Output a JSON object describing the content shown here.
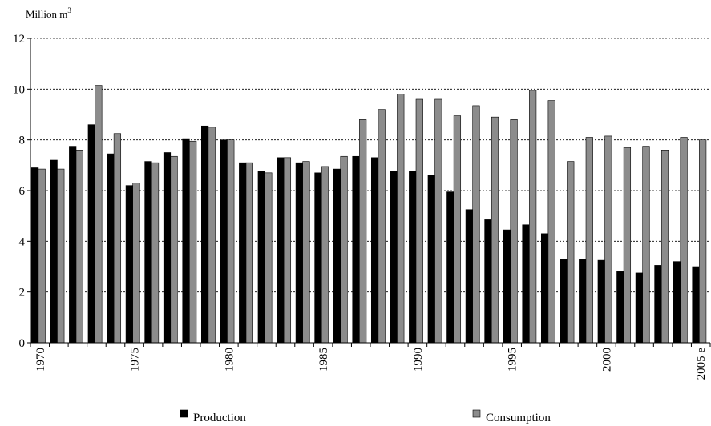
{
  "chart_data": {
    "type": "bar",
    "ylabel": "Million m",
    "ylabel_superscript": "3",
    "ylim": [
      0,
      12
    ],
    "yticks": [
      "0",
      "2",
      "4",
      "6",
      "8",
      "10",
      "12"
    ],
    "grid": true,
    "legend_position": "bottom",
    "categories": [
      "1970",
      "1971",
      "1972",
      "1973",
      "1974",
      "1975",
      "1976",
      "1977",
      "1978",
      "1979",
      "1980",
      "1981",
      "1982",
      "1983",
      "1984",
      "1985",
      "1986",
      "1987",
      "1988",
      "1989",
      "1990",
      "1991",
      "1992",
      "1993",
      "1994",
      "1995",
      "1996",
      "1997",
      "1998",
      "1999",
      "2000",
      "2001",
      "2002",
      "2003",
      "2004",
      "2005 e"
    ],
    "xtick_labels": [
      {
        "index": 0,
        "label": "1970"
      },
      {
        "index": 5,
        "label": "1975"
      },
      {
        "index": 10,
        "label": "1980"
      },
      {
        "index": 15,
        "label": "1985"
      },
      {
        "index": 20,
        "label": "1990"
      },
      {
        "index": 25,
        "label": "1995"
      },
      {
        "index": 30,
        "label": "2000"
      },
      {
        "index": 35,
        "label": "2005 e"
      }
    ],
    "series": [
      {
        "name": "Production",
        "color": "#000000",
        "values": [
          6.9,
          7.2,
          7.75,
          8.6,
          7.45,
          6.2,
          7.15,
          7.5,
          8.05,
          8.55,
          8.0,
          7.1,
          6.75,
          7.3,
          7.1,
          6.7,
          6.85,
          7.35,
          7.3,
          6.75,
          6.75,
          6.6,
          5.95,
          5.25,
          4.85,
          4.45,
          4.65,
          4.3,
          3.3,
          3.3,
          3.25,
          2.8,
          2.75,
          3.05,
          3.2,
          3.0
        ]
      },
      {
        "name": "Consumption",
        "color": "#8c8c8c",
        "values": [
          6.85,
          6.85,
          7.6,
          10.15,
          8.25,
          6.3,
          7.1,
          7.35,
          7.95,
          8.5,
          8.0,
          7.1,
          6.7,
          7.3,
          7.15,
          6.95,
          7.35,
          8.8,
          9.2,
          9.8,
          9.6,
          9.6,
          8.95,
          9.35,
          8.9,
          8.8,
          9.95,
          9.55,
          7.15,
          8.1,
          8.15,
          7.7,
          7.75,
          7.6,
          8.1,
          8.0
        ]
      }
    ]
  }
}
